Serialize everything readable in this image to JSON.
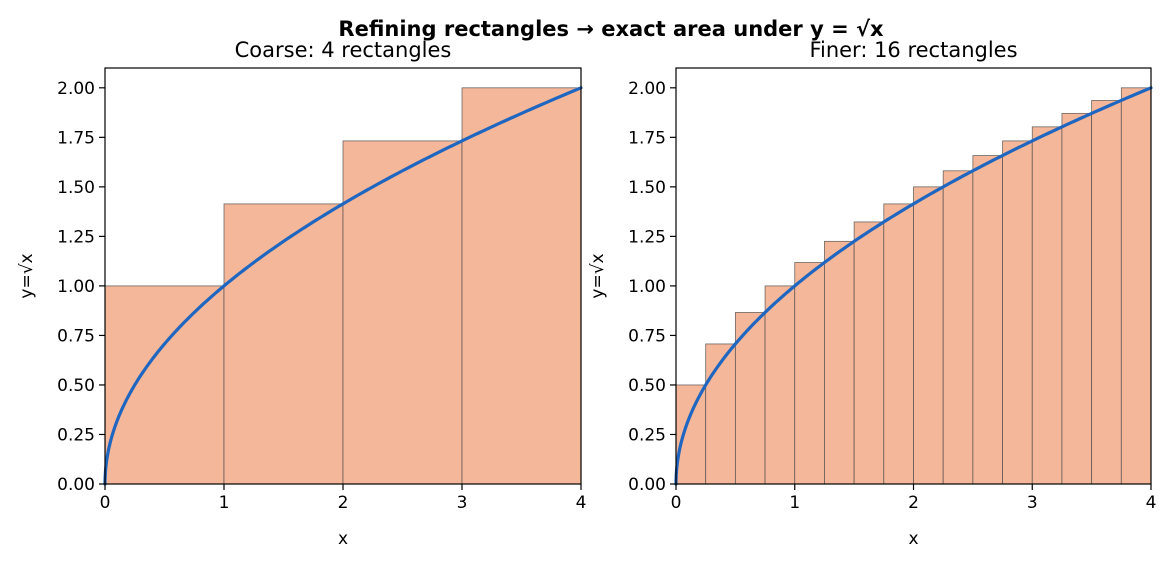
{
  "figure": {
    "suptitle": "Refining rectangles → exact area under y = √x"
  },
  "colors": {
    "rect_fill": "#f4b799",
    "rect_edge": "#4a4a4a",
    "curve": "#1f66c1",
    "axis": "#000000"
  },
  "chart_data": [
    {
      "type": "bar",
      "title": "Coarse: 4 rectangles",
      "xlabel": "x",
      "ylabel": "y=√x",
      "xlim": [
        0,
        4
      ],
      "ylim": [
        0,
        2.1
      ],
      "xticks": [
        0,
        1,
        2,
        3,
        4
      ],
      "xtick_labels": [
        "0",
        "1",
        "2",
        "3",
        "4"
      ],
      "yticks": [
        0,
        0.25,
        0.5,
        0.75,
        1.0,
        1.25,
        1.5,
        1.75,
        2.0
      ],
      "ytick_labels": [
        "0.00",
        "0.25",
        "0.50",
        "0.75",
        "1.00",
        "1.25",
        "1.50",
        "1.75",
        "2.00"
      ],
      "rectangles": {
        "x_left": [
          0,
          1,
          2,
          3
        ],
        "width": 1,
        "heights": [
          1.0,
          1.414,
          1.732,
          2.0
        ]
      },
      "curve": {
        "function": "sqrt",
        "x_range": [
          0,
          4
        ]
      },
      "grid": false,
      "legend": "none"
    },
    {
      "type": "bar",
      "title": "Finer: 16 rectangles",
      "xlabel": "x",
      "ylabel": "y=√x",
      "xlim": [
        0,
        4
      ],
      "ylim": [
        0,
        2.1
      ],
      "xticks": [
        0,
        1,
        2,
        3,
        4
      ],
      "xtick_labels": [
        "0",
        "1",
        "2",
        "3",
        "4"
      ],
      "yticks": [
        0,
        0.25,
        0.5,
        0.75,
        1.0,
        1.25,
        1.5,
        1.75,
        2.0
      ],
      "ytick_labels": [
        "0.00",
        "0.25",
        "0.50",
        "0.75",
        "1.00",
        "1.25",
        "1.50",
        "1.75",
        "2.00"
      ],
      "rectangles": {
        "x_left": [
          0,
          0.25,
          0.5,
          0.75,
          1.0,
          1.25,
          1.5,
          1.75,
          2.0,
          2.25,
          2.5,
          2.75,
          3.0,
          3.25,
          3.5,
          3.75
        ],
        "width": 0.25,
        "heights": [
          0.5,
          0.707,
          0.866,
          1.0,
          1.118,
          1.225,
          1.323,
          1.414,
          1.5,
          1.581,
          1.658,
          1.732,
          1.803,
          1.871,
          1.936,
          2.0
        ]
      },
      "curve": {
        "function": "sqrt",
        "x_range": [
          0,
          4
        ]
      },
      "grid": false,
      "legend": "none"
    }
  ]
}
